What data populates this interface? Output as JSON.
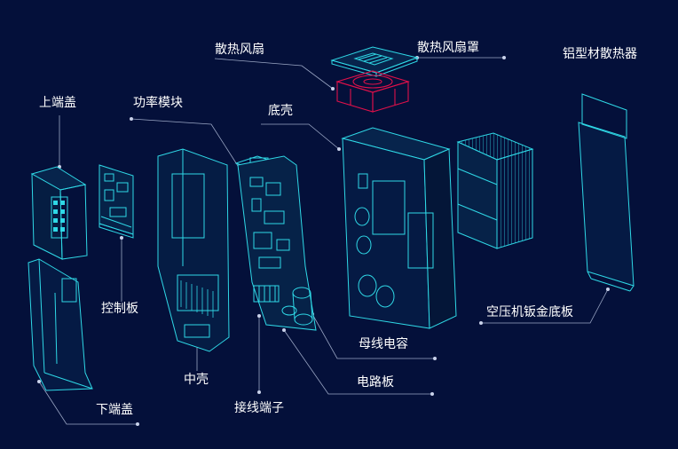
{
  "labels": {
    "fan": "散热风扇",
    "fan_cover": "散热风扇罩",
    "heatsink": "铝型材散热器",
    "top_cover": "上端盖",
    "power_module": "功率模块",
    "base_shell": "底壳",
    "control_board": "控制板",
    "sheet_metal_base": "空压机钣金底板",
    "bus_capacitor": "母线电容",
    "middle_shell": "中壳",
    "circuit_board": "电路板",
    "bottom_cover": "下端盖",
    "terminal": "接线端子"
  },
  "colors": {
    "background": "#04103a",
    "wireframe": "#2fd8e6",
    "fan_highlight": "#e0104a",
    "leader_line": "#9aa6c4",
    "text": "#ffffff"
  }
}
